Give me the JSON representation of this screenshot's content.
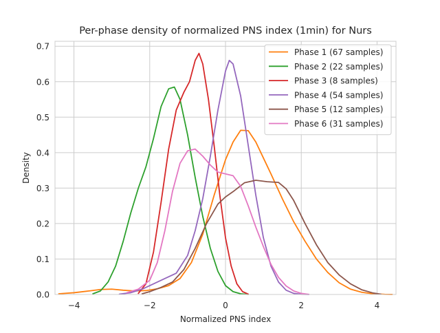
{
  "chart_data": {
    "type": "line",
    "title": "Per-phase density of normalized PNS index (1min) for Nurs",
    "xlabel": "Normalized PNS index",
    "ylabel": "Density",
    "xlim": [
      -4.5,
      4.5
    ],
    "ylim": [
      0,
      0.714
    ],
    "xticks": [
      -4,
      -2,
      0,
      2,
      4
    ],
    "yticks": [
      0.0,
      0.1,
      0.2,
      0.3,
      0.4,
      0.5,
      0.6,
      0.7
    ],
    "xtick_labels": [
      "−4",
      "−2",
      "0",
      "2",
      "4"
    ],
    "ytick_labels": [
      "0.0",
      "0.1",
      "0.2",
      "0.3",
      "0.4",
      "0.5",
      "0.6",
      "0.7"
    ],
    "grid": true,
    "legend_position": "top-right",
    "series": [
      {
        "name": "Phase 1 (67 samples)",
        "color": "#ff7f0e",
        "x": [
          -4.4,
          -4.0,
          -3.6,
          -3.3,
          -3.0,
          -2.7,
          -2.4,
          -2.1,
          -1.8,
          -1.5,
          -1.2,
          -0.9,
          -0.6,
          -0.3,
          0.0,
          0.2,
          0.4,
          0.6,
          0.8,
          1.0,
          1.2,
          1.5,
          1.8,
          2.1,
          2.4,
          2.7,
          3.0,
          3.3,
          3.6,
          3.9,
          4.2,
          4.4
        ],
        "y": [
          0.002,
          0.005,
          0.01,
          0.014,
          0.015,
          0.012,
          0.01,
          0.011,
          0.016,
          0.025,
          0.045,
          0.09,
          0.17,
          0.28,
          0.38,
          0.43,
          0.463,
          0.462,
          0.43,
          0.385,
          0.34,
          0.27,
          0.205,
          0.15,
          0.1,
          0.062,
          0.033,
          0.015,
          0.006,
          0.002,
          0.0005,
          0.0001
        ]
      },
      {
        "name": "Phase 2 (22 samples)",
        "color": "#2ca02c",
        "x": [
          -3.5,
          -3.3,
          -3.1,
          -2.9,
          -2.7,
          -2.5,
          -2.3,
          -2.1,
          -1.9,
          -1.7,
          -1.5,
          -1.35,
          -1.2,
          -1.0,
          -0.8,
          -0.6,
          -0.4,
          -0.2,
          0.0,
          0.2,
          0.4,
          0.6
        ],
        "y": [
          0.002,
          0.01,
          0.035,
          0.08,
          0.15,
          0.23,
          0.3,
          0.36,
          0.44,
          0.53,
          0.58,
          0.585,
          0.55,
          0.45,
          0.33,
          0.22,
          0.13,
          0.065,
          0.025,
          0.008,
          0.002,
          0.0002
        ]
      },
      {
        "name": "Phase 3 (8 samples)",
        "color": "#d62728",
        "x": [
          -2.3,
          -2.1,
          -1.9,
          -1.7,
          -1.5,
          -1.3,
          -1.1,
          -0.95,
          -0.8,
          -0.7,
          -0.6,
          -0.45,
          -0.3,
          -0.15,
          0.0,
          0.15,
          0.3,
          0.45,
          0.6
        ],
        "y": [
          0.003,
          0.03,
          0.12,
          0.26,
          0.41,
          0.52,
          0.57,
          0.6,
          0.66,
          0.68,
          0.65,
          0.55,
          0.42,
          0.28,
          0.16,
          0.08,
          0.03,
          0.008,
          0.001
        ]
      },
      {
        "name": "Phase 4 (54 samples)",
        "color": "#9467bd",
        "x": [
          -2.8,
          -2.5,
          -2.2,
          -1.9,
          -1.6,
          -1.3,
          -1.0,
          -0.8,
          -0.6,
          -0.4,
          -0.2,
          0.0,
          0.1,
          0.2,
          0.4,
          0.6,
          0.8,
          1.0,
          1.2,
          1.4,
          1.6,
          1.8,
          2.0,
          2.2
        ],
        "y": [
          0.001,
          0.005,
          0.015,
          0.03,
          0.045,
          0.06,
          0.11,
          0.18,
          0.27,
          0.39,
          0.52,
          0.63,
          0.66,
          0.65,
          0.56,
          0.42,
          0.28,
          0.16,
          0.08,
          0.035,
          0.012,
          0.003,
          0.0006,
          0.0001
        ]
      },
      {
        "name": "Phase 5 (12 samples)",
        "color": "#8c564b",
        "x": [
          -2.2,
          -2.0,
          -1.7,
          -1.4,
          -1.1,
          -0.8,
          -0.5,
          -0.2,
          0.0,
          0.2,
          0.5,
          0.8,
          1.1,
          1.4,
          1.6,
          1.8,
          2.1,
          2.4,
          2.7,
          3.0,
          3.3,
          3.6,
          3.9,
          4.1
        ],
        "y": [
          0.002,
          0.008,
          0.02,
          0.035,
          0.07,
          0.13,
          0.2,
          0.255,
          0.275,
          0.29,
          0.315,
          0.322,
          0.318,
          0.316,
          0.298,
          0.265,
          0.2,
          0.14,
          0.09,
          0.055,
          0.03,
          0.013,
          0.004,
          0.001
        ]
      },
      {
        "name": "Phase 6 (31 samples)",
        "color": "#e377c2",
        "x": [
          -2.6,
          -2.3,
          -2.0,
          -1.8,
          -1.6,
          -1.4,
          -1.2,
          -1.0,
          -0.8,
          -0.6,
          -0.4,
          -0.2,
          0.0,
          0.2,
          0.4,
          0.6,
          0.8,
          1.0,
          1.2,
          1.4,
          1.6,
          1.8,
          2.0,
          2.2
        ],
        "y": [
          0.005,
          0.015,
          0.04,
          0.09,
          0.18,
          0.29,
          0.37,
          0.405,
          0.41,
          0.39,
          0.365,
          0.345,
          0.34,
          0.335,
          0.305,
          0.25,
          0.19,
          0.135,
          0.085,
          0.048,
          0.024,
          0.01,
          0.003,
          0.0005
        ]
      }
    ]
  }
}
